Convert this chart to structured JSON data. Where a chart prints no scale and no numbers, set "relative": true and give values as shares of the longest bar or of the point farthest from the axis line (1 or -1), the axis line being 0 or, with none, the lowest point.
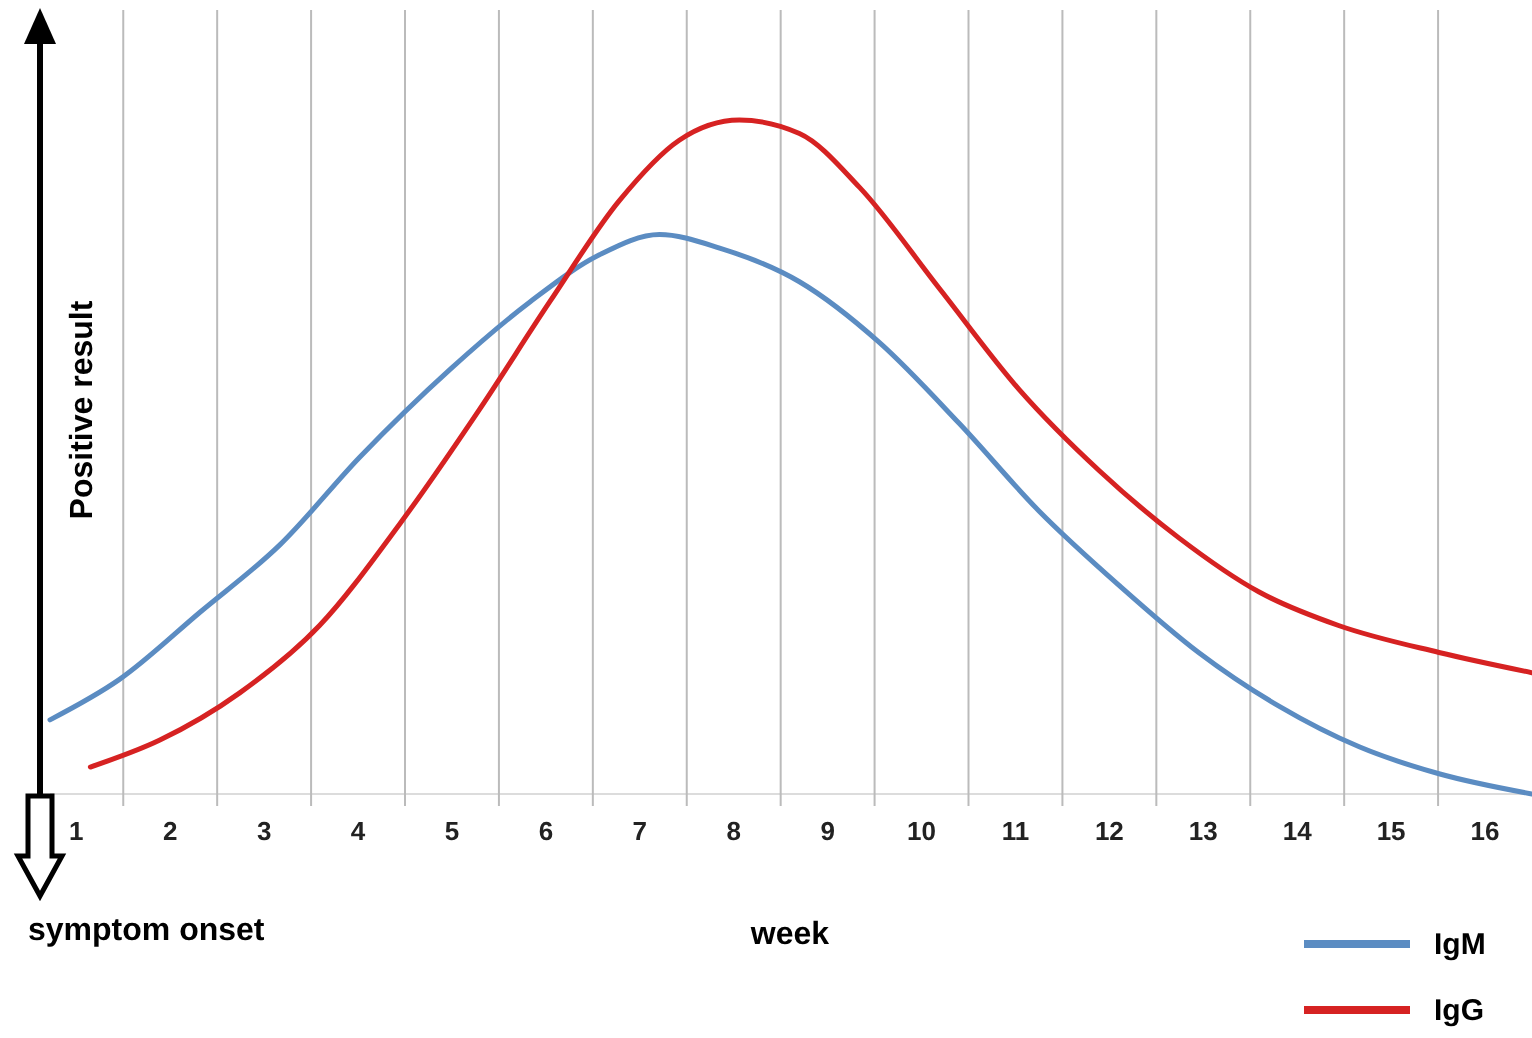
{
  "chart_data": {
    "type": "line",
    "relative": true,
    "ylabel": "Positive result",
    "xlabel": "week",
    "annotations": [
      "symptom onset"
    ],
    "xlim": [
      0.72,
      16.5
    ],
    "xticks": [
      1,
      2,
      3,
      4,
      5,
      6,
      7,
      8,
      9,
      10,
      11,
      12,
      13,
      14,
      15,
      16,
      {
        "value": 1.5,
        "label": null
      },
      {
        "value": 2.5,
        "label": null
      },
      {
        "value": 3.5,
        "label": null
      },
      {
        "value": 4.5,
        "label": null
      },
      {
        "value": 5.5,
        "label": null
      },
      {
        "value": 6.5,
        "label": null
      },
      {
        "value": 7.5,
        "label": null
      },
      {
        "value": 8.5,
        "label": null
      },
      {
        "value": 9.5,
        "label": null
      },
      {
        "value": 10.5,
        "label": null
      },
      {
        "value": 11.5,
        "label": null
      },
      {
        "value": 12.5,
        "label": null
      },
      {
        "value": 13.5,
        "label": null
      },
      {
        "value": 14.5,
        "label": null
      },
      {
        "value": 15.5,
        "label": null
      }
    ],
    "grid": "x",
    "legend": "bottom right",
    "marker": "none",
    "line_style": "solid",
    "series": [
      {
        "name": "IgM",
        "color": "#5b8cc2",
        "x": [
          0.72,
          1.46,
          2.32,
          3.17,
          4.02,
          4.98,
          5.83,
          6.57,
          7.21,
          7.85,
          8.7,
          9.55,
          10.4,
          11.25,
          12.1,
          12.95,
          13.81,
          14.66,
          15.51,
          16.5
        ],
        "values": [
          0.11,
          0.17,
          0.27,
          0.37,
          0.5,
          0.63,
          0.73,
          0.8,
          0.83,
          0.81,
          0.76,
          0.67,
          0.55,
          0.42,
          0.31,
          0.21,
          0.13,
          0.07,
          0.03,
          0
        ]
      },
      {
        "name": "IgG",
        "color": "#d62222",
        "x": [
          1.15,
          1.89,
          2.74,
          3.59,
          4.44,
          5.29,
          6.04,
          6.78,
          7.42,
          8.06,
          8.7,
          9.34,
          10.19,
          11.04,
          11.89,
          12.74,
          13.59,
          14.44,
          15.51,
          16.5
        ],
        "values": [
          0.04,
          0.08,
          0.15,
          0.25,
          0.4,
          0.57,
          0.73,
          0.88,
          0.97,
          1,
          0.98,
          0.9,
          0.75,
          0.6,
          0.48,
          0.38,
          0.3,
          0.25,
          0.21,
          0.18
        ]
      }
    ]
  }
}
